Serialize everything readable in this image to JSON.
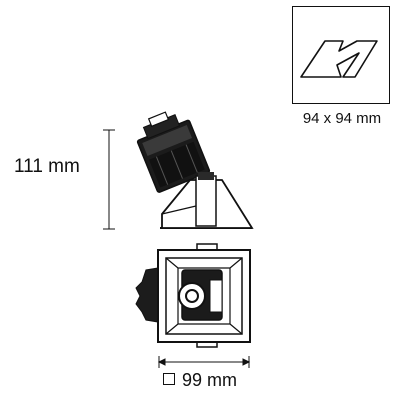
{
  "cutout": {
    "label": "94 x 94 mm",
    "icon": "cutout-shape-icon"
  },
  "height": {
    "label": "111 mm"
  },
  "width": {
    "label": "99 mm",
    "icon": "square-icon"
  }
}
